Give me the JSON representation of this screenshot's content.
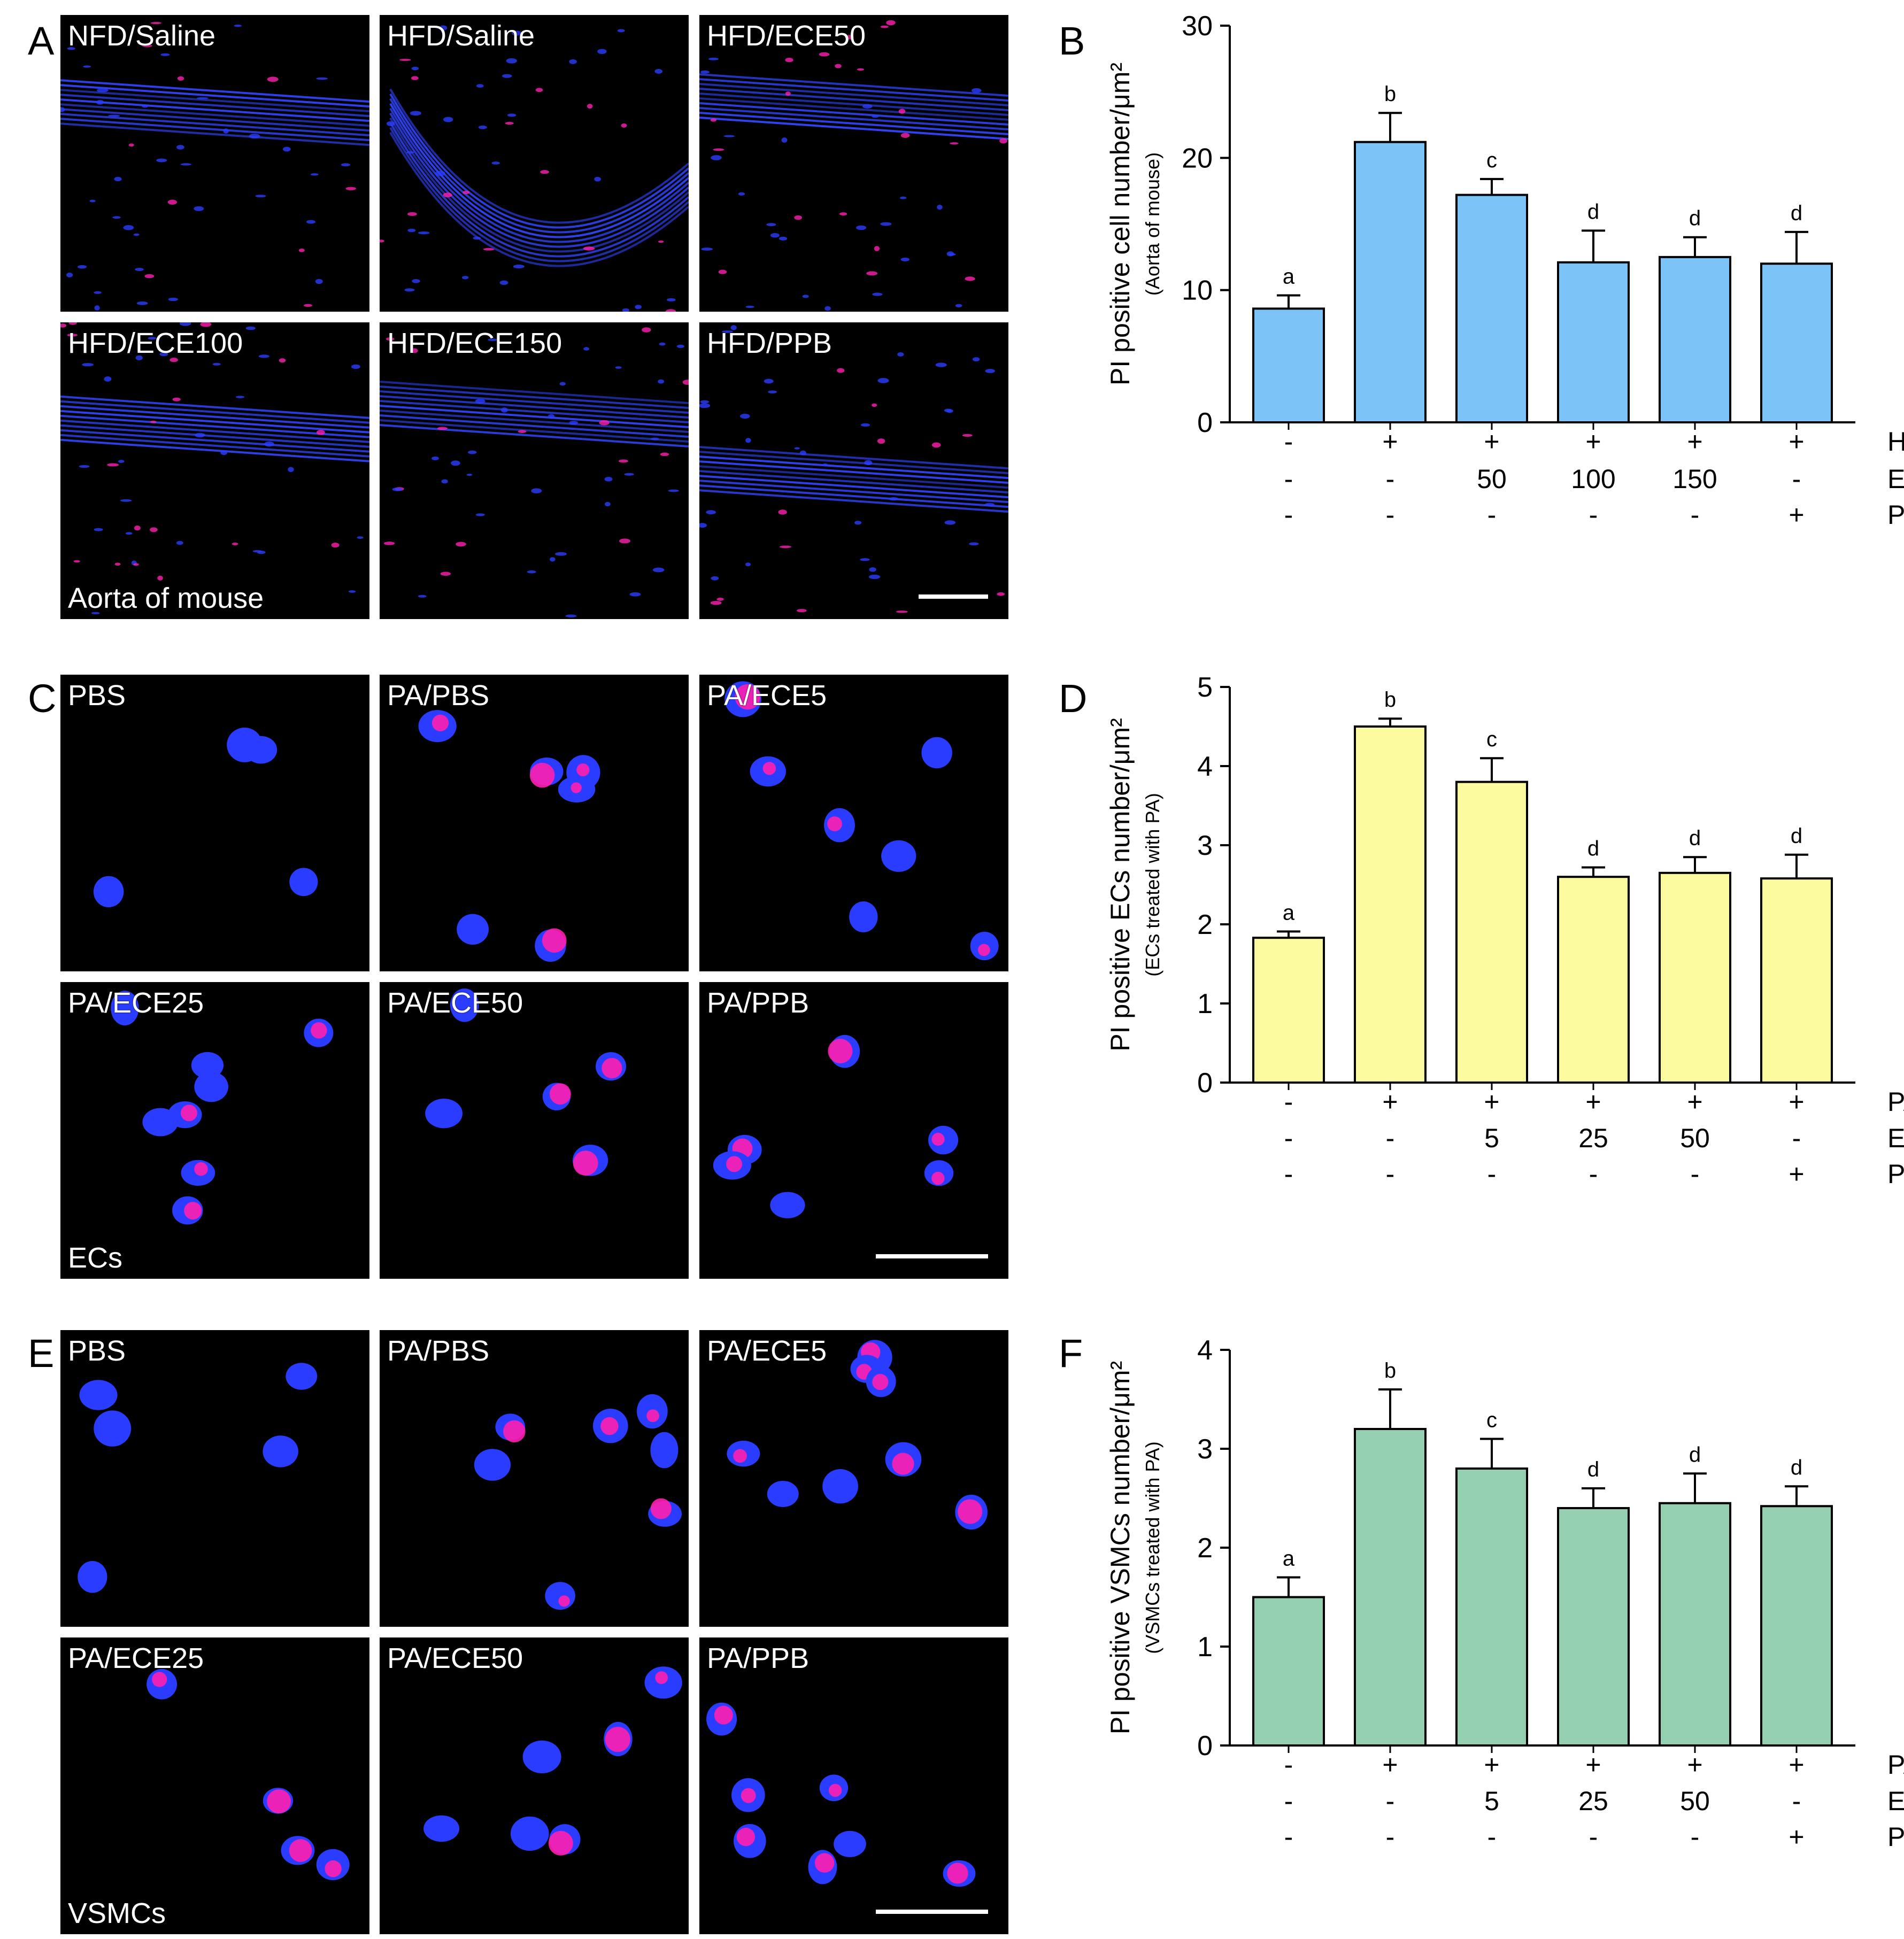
{
  "panels": {
    "A": "A",
    "B": "B",
    "C": "C",
    "D": "D",
    "E": "E",
    "F": "F"
  },
  "micrographs": {
    "A": {
      "labels": [
        "NFD/Saline",
        "HFD/Saline",
        "HFD/ECE50",
        "HFD/ECE100",
        "HFD/ECE150",
        "HFD/PPB"
      ],
      "note": "Aorta of mouse",
      "kind": "tissue"
    },
    "C": {
      "labels": [
        "PBS",
        "PA/PBS",
        "PA/ECE5",
        "PA/ECE25",
        "PA/ECE50",
        "PA/PPB"
      ],
      "note": "ECs",
      "kind": "cells"
    },
    "E": {
      "labels": [
        "PBS",
        "PA/PBS",
        "PA/ECE5",
        "PA/ECE25",
        "PA/ECE50",
        "PA/PPB"
      ],
      "note": "VSMCs",
      "kind": "cells"
    }
  },
  "colors": {
    "nucleus": "#2a3cff",
    "pi_stain": "#ff1fb0",
    "fiber": "#3346ff",
    "bar_B": "#7cc3f7",
    "bar_D": "#fbfa9e",
    "bar_F": "#93cfb0"
  },
  "chart_data": [
    {
      "panel": "B",
      "type": "bar",
      "ylabel": "PI positive cell number/μm²",
      "ylabel_sub": "(Aorta of mouse)",
      "ylim": [
        0,
        30
      ],
      "yticks": [
        0,
        10,
        20,
        30
      ],
      "values": [
        8.6,
        21.2,
        17.2,
        12.1,
        12.5,
        12.0
      ],
      "errors": [
        1.0,
        2.2,
        1.2,
        2.4,
        1.5,
        2.4
      ],
      "sig_letters": [
        "a",
        "b",
        "c",
        "d",
        "d",
        "d"
      ],
      "color": "#7cc3f7",
      "treatment_rows": [
        {
          "label": "HFD",
          "cells": [
            "-",
            "+",
            "+",
            "+",
            "+",
            "+"
          ]
        },
        {
          "label": "ECE",
          "cells": [
            "-",
            "-",
            "50",
            "100",
            "150",
            "-"
          ]
        },
        {
          "label": "PPB",
          "cells": [
            "-",
            "-",
            "-",
            "-",
            "-",
            "+"
          ]
        }
      ]
    },
    {
      "panel": "D",
      "type": "bar",
      "ylabel": "PI positive ECs number/μm²",
      "ylabel_sub": "(ECs treated with PA)",
      "ylim": [
        0,
        5
      ],
      "yticks": [
        0,
        1,
        2,
        3,
        4,
        5
      ],
      "values": [
        1.83,
        4.5,
        3.8,
        2.6,
        2.65,
        2.58
      ],
      "errors": [
        0.08,
        0.1,
        0.3,
        0.12,
        0.2,
        0.3
      ],
      "sig_letters": [
        "a",
        "b",
        "c",
        "d",
        "d",
        "d"
      ],
      "color": "#fbfa9e",
      "treatment_rows": [
        {
          "label": "PA",
          "cells": [
            "-",
            "+",
            "+",
            "+",
            "+",
            "+"
          ]
        },
        {
          "label": "ECE",
          "cells": [
            "-",
            "-",
            "5",
            "25",
            "50",
            "-"
          ]
        },
        {
          "label": "PPB",
          "cells": [
            "-",
            "-",
            "-",
            "-",
            "-",
            "+"
          ]
        }
      ]
    },
    {
      "panel": "F",
      "type": "bar",
      "ylabel": "PI positive VSMCs number/μm²",
      "ylabel_sub": "(VSMCs treated with PA)",
      "ylim": [
        0,
        4
      ],
      "yticks": [
        0,
        1,
        2,
        3,
        4
      ],
      "values": [
        1.5,
        3.2,
        2.8,
        2.4,
        2.45,
        2.42
      ],
      "errors": [
        0.2,
        0.4,
        0.3,
        0.2,
        0.3,
        0.2
      ],
      "sig_letters": [
        "a",
        "b",
        "c",
        "d",
        "d",
        "d"
      ],
      "color": "#93cfb0",
      "treatment_rows": [
        {
          "label": "PA",
          "cells": [
            "-",
            "+",
            "+",
            "+",
            "+",
            "+"
          ]
        },
        {
          "label": "ECE",
          "cells": [
            "-",
            "-",
            "5",
            "25",
            "50",
            "-"
          ]
        },
        {
          "label": "PPB",
          "cells": [
            "-",
            "-",
            "-",
            "-",
            "-",
            "+"
          ]
        }
      ]
    }
  ]
}
